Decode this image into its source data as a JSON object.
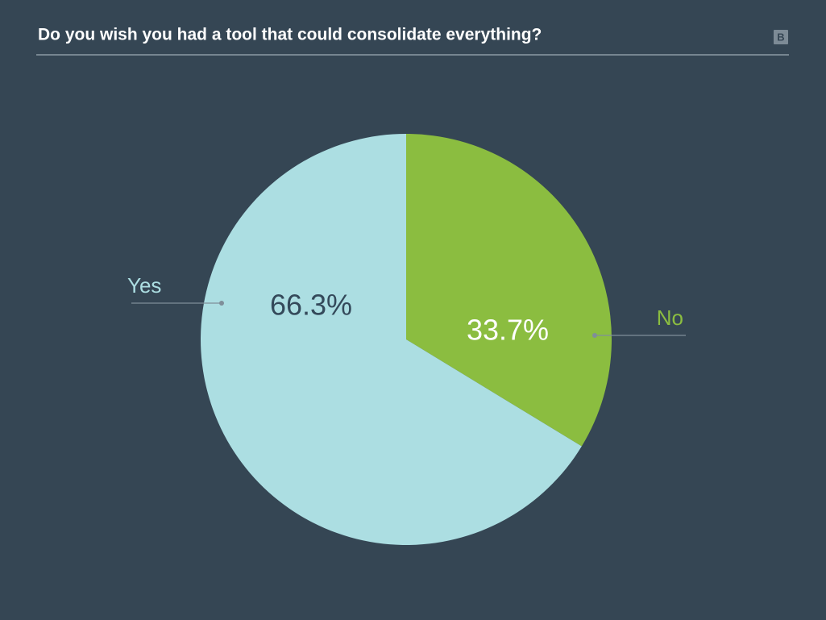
{
  "logo": "B",
  "chart_data": {
    "type": "pie",
    "title": "Do you wish you had a tool that could consolidate everything?",
    "categories": [
      "No",
      "Yes"
    ],
    "values": [
      33.7,
      66.3
    ],
    "value_labels": [
      "33.7%",
      "66.3%"
    ],
    "colors": [
      "#8bbd40",
      "#acdee2"
    ]
  }
}
